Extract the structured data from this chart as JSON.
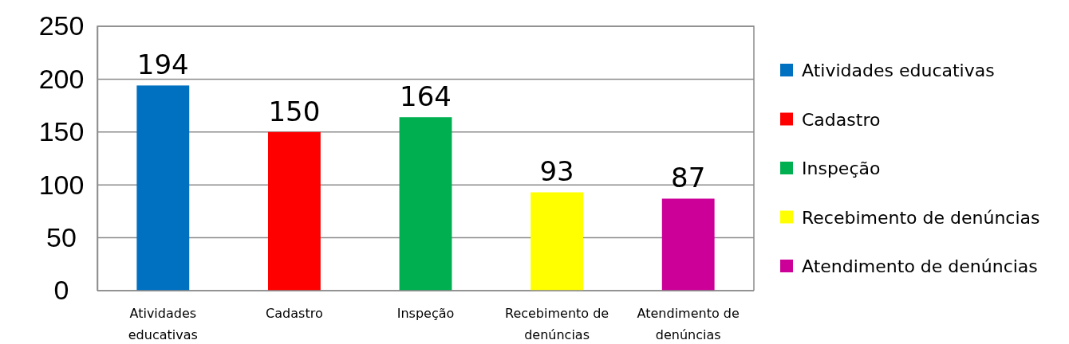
{
  "chart_data": {
    "type": "bar",
    "categories": [
      "Atividades educativas",
      "Cadastro",
      "Inspeção",
      "Recebimento de denúncias",
      "Atendimento de denúncias"
    ],
    "series": [
      {
        "name": "Atividades educativas",
        "color": "#0070c0",
        "values": [
          194,
          null,
          null,
          null,
          null
        ]
      },
      {
        "name": "Cadastro",
        "color": "#ff0000",
        "values": [
          null,
          150,
          null,
          null,
          null
        ]
      },
      {
        "name": "Inspeção",
        "color": "#00b050",
        "values": [
          null,
          null,
          164,
          null,
          null
        ]
      },
      {
        "name": "Recebimento de denúncias",
        "color": "#ffff00",
        "values": [
          null,
          null,
          null,
          93,
          null
        ]
      },
      {
        "name": "Atendimento de denúncias",
        "color": "#cc0099",
        "values": [
          null,
          null,
          null,
          null,
          87
        ]
      }
    ],
    "ylim": [
      0,
      250
    ],
    "yticks": [
      0,
      50,
      100,
      150,
      200,
      250
    ],
    "grid": "y",
    "legend": "right",
    "data_labels": true
  }
}
